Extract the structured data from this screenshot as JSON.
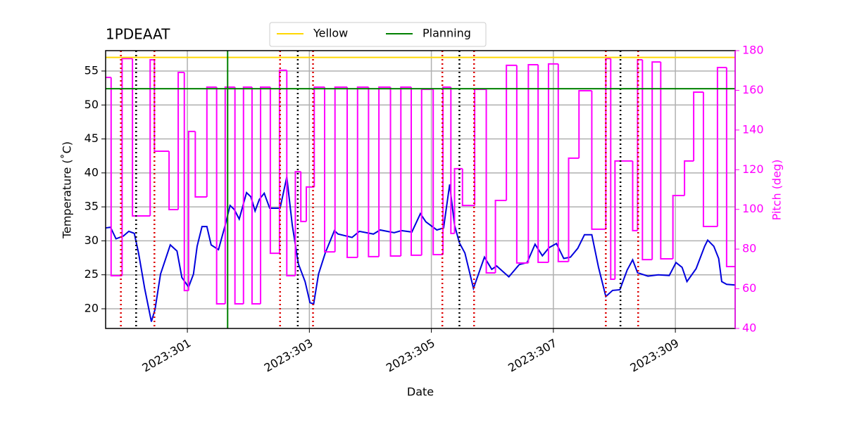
{
  "chart_data": {
    "type": "line",
    "title": "1PDEAAT",
    "xlabel": "Date",
    "ylabel": "Temperature (˚C)",
    "y2label": "Pitch (deg)",
    "grid": true,
    "legend": "upper center",
    "xlim": [
      299.66,
      309.98
    ],
    "ylim": [
      17.1,
      58.0
    ],
    "y2lim": [
      40,
      180
    ],
    "xticks": [
      {
        "value": 301,
        "label": "2023:301"
      },
      {
        "value": 303,
        "label": "2023:303"
      },
      {
        "value": 305,
        "label": "2023:305"
      },
      {
        "value": 307,
        "label": "2023:307"
      },
      {
        "value": 309,
        "label": "2023:309"
      }
    ],
    "yticks": [
      20,
      25,
      30,
      35,
      40,
      45,
      50,
      55
    ],
    "y2ticks": [
      40,
      60,
      80,
      100,
      120,
      140,
      160,
      180
    ],
    "y2color": "#ff00ff",
    "limits": [
      {
        "name": "Yellow",
        "color": "#ffd700",
        "value": 57
      },
      {
        "name": "Planning",
        "color": "#008000",
        "value": 52.4,
        "x": 301.66
      }
    ],
    "red_lines": {
      "color": "#dd0000",
      "x": [
        299.91,
        300.46,
        302.52,
        303.06,
        305.18,
        305.7,
        307.86,
        308.39
      ]
    },
    "black_lines": {
      "color": "#000000",
      "x": [
        300.16,
        302.81,
        305.46,
        308.1
      ]
    },
    "series": [
      {
        "color": "#0000dd",
        "x": [
          299.66,
          299.74,
          299.83,
          299.95,
          300.04,
          300.13,
          300.2,
          300.3,
          300.41,
          300.47,
          300.56,
          300.72,
          300.83,
          300.91,
          301.02,
          301.1,
          301.16,
          301.24,
          301.32,
          301.39,
          301.51,
          301.62,
          301.7,
          301.77,
          301.85,
          301.97,
          302.04,
          302.11,
          302.18,
          302.26,
          302.35,
          302.52,
          302.63,
          302.72,
          302.82,
          302.93,
          303.01,
          303.07,
          303.15,
          303.26,
          303.41,
          303.47,
          303.7,
          303.82,
          304.05,
          304.16,
          304.39,
          304.51,
          304.68,
          304.82,
          304.91,
          305.09,
          305.2,
          305.3,
          305.38,
          305.46,
          305.55,
          305.69,
          305.87,
          305.99,
          306.07,
          306.27,
          306.44,
          306.57,
          306.7,
          306.82,
          306.93,
          307.05,
          307.17,
          307.28,
          307.4,
          307.51,
          307.63,
          307.74,
          307.86,
          307.97,
          308.09,
          308.21,
          308.3,
          308.38,
          308.55,
          308.72,
          308.9,
          309.01,
          309.11,
          309.19,
          309.34,
          309.48,
          309.53,
          309.63,
          309.71,
          309.76,
          309.84,
          309.98
        ],
        "values": [
          31.9,
          32.0,
          30.3,
          30.7,
          31.4,
          31.1,
          28.2,
          23.0,
          18.1,
          19.9,
          25.1,
          29.4,
          28.5,
          24.6,
          23.2,
          25.1,
          29.2,
          32.1,
          32.1,
          29.4,
          28.7,
          32.3,
          35.2,
          34.6,
          33.2,
          37.1,
          36.5,
          34.4,
          36.1,
          37.0,
          34.8,
          34.8,
          39.4,
          32.3,
          26.6,
          24.0,
          20.9,
          20.7,
          25.1,
          28.2,
          31.5,
          31.0,
          30.5,
          31.4,
          31.0,
          31.6,
          31.2,
          31.5,
          31.3,
          34.0,
          32.8,
          31.6,
          31.9,
          38.3,
          32.3,
          29.7,
          28.2,
          23.0,
          27.6,
          25.8,
          26.3,
          24.7,
          26.5,
          26.8,
          29.5,
          27.8,
          29.0,
          29.6,
          27.4,
          27.6,
          28.9,
          30.9,
          30.9,
          26.1,
          21.8,
          22.7,
          22.8,
          25.7,
          27.2,
          25.3,
          24.8,
          25.0,
          24.9,
          26.8,
          26.1,
          24.0,
          25.9,
          29.2,
          30.1,
          29.2,
          27.4,
          24.0,
          23.6,
          23.5
        ]
      },
      {
        "color": "#ff00ff",
        "axis": "y2",
        "step": "post",
        "x": [
          299.66,
          299.75,
          299.93,
          300.1,
          300.39,
          300.46,
          300.7,
          300.85,
          300.95,
          301.02,
          301.13,
          301.32,
          301.48,
          301.62,
          301.78,
          301.92,
          302.06,
          302.2,
          302.36,
          302.51,
          302.63,
          302.77,
          302.86,
          302.95,
          303.08,
          303.25,
          303.42,
          303.62,
          303.79,
          303.97,
          304.14,
          304.33,
          304.5,
          304.67,
          304.84,
          305.03,
          305.19,
          305.32,
          305.38,
          305.51,
          305.71,
          305.9,
          306.05,
          306.23,
          306.4,
          306.59,
          306.75,
          306.92,
          307.08,
          307.25,
          307.42,
          307.63,
          307.86,
          307.94,
          308.01,
          308.3,
          308.38,
          308.46,
          308.62,
          308.76,
          308.96,
          309.15,
          309.3,
          309.46,
          309.69,
          309.84,
          309.98
        ],
        "values": [
          166.5,
          66.6,
          176,
          96.7,
          175.4,
          129.3,
          99.9,
          169,
          59.1,
          139.3,
          106.3,
          161.6,
          52.4,
          161.6,
          52.4,
          161.6,
          52.4,
          161.6,
          77.9,
          170.1,
          66.6,
          119,
          93.9,
          111.3,
          161.6,
          78.6,
          161.6,
          75.8,
          161.6,
          76.2,
          161.6,
          76.5,
          161.6,
          76.9,
          160.5,
          77.2,
          161.6,
          87.9,
          120.5,
          102,
          160.5,
          68,
          104.5,
          172.6,
          73,
          172.9,
          73.3,
          173.3,
          73.7,
          125.8,
          159.8,
          90,
          176,
          64.8,
          124.4,
          89.3,
          175.4,
          74.7,
          174.3,
          75.1,
          107,
          124.4,
          159.1,
          91.4,
          171.5,
          71.2,
          71.2
        ]
      }
    ]
  }
}
